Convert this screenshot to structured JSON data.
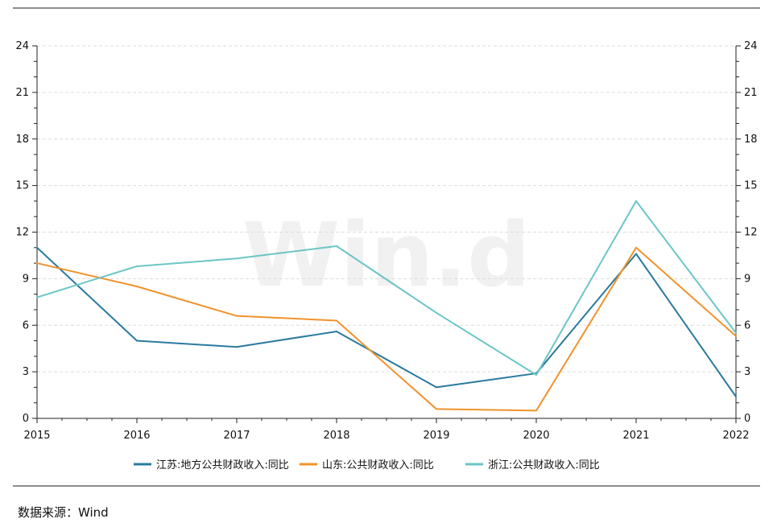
{
  "watermark": "Win.d",
  "source": "数据来源：Wind",
  "chart_data": {
    "type": "line",
    "x": [
      "2015",
      "2016",
      "2017",
      "2018",
      "2019",
      "2020",
      "2021",
      "2022"
    ],
    "ylim": [
      0,
      24
    ],
    "yticks": [
      0,
      3,
      6,
      9,
      12,
      15,
      18,
      21,
      24
    ],
    "y2lim": [
      0,
      24
    ],
    "grid": true,
    "legend_position": "bottom",
    "series": [
      {
        "name": "江苏:地方公共财政收入:同比",
        "color": "#2a7aa0",
        "values": [
          11.0,
          5.0,
          4.6,
          5.6,
          2.0,
          2.9,
          10.6,
          1.4
        ]
      },
      {
        "name": "山东:公共财政收入:同比",
        "color": "#f0922b",
        "values": [
          10.0,
          8.5,
          6.6,
          6.3,
          0.6,
          0.5,
          11.0,
          5.3
        ]
      },
      {
        "name": "浙江:公共财政收入:同比",
        "color": "#6cc5c6",
        "values": [
          7.8,
          9.8,
          10.3,
          11.1,
          6.8,
          2.8,
          14.0,
          5.5
        ]
      }
    ]
  }
}
